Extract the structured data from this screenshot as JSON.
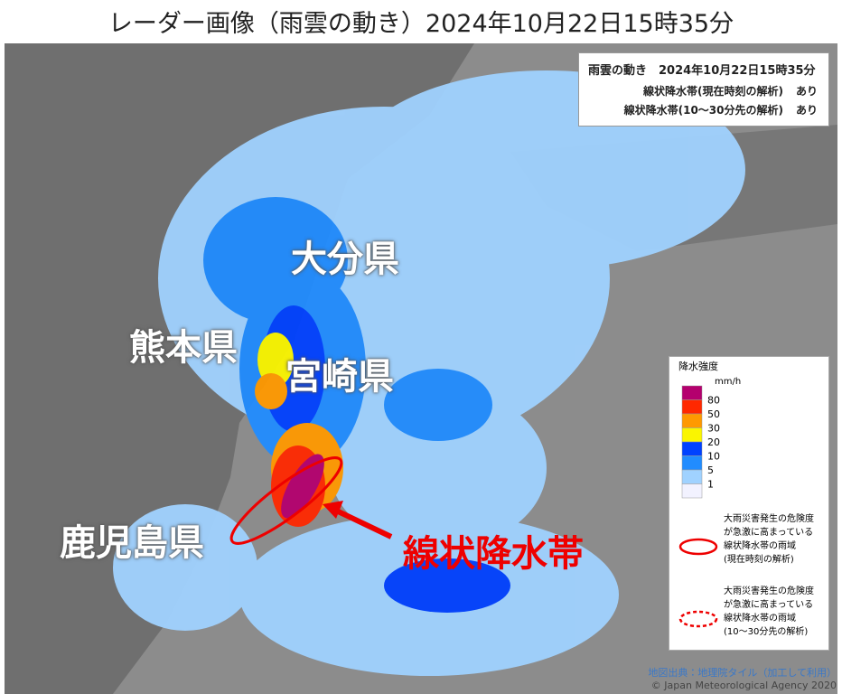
{
  "title": "レーダー画像（雨雲の動き）2024年10月22日15時35分",
  "info_box": {
    "title": "雨雲の動き　2024年10月22日15時35分",
    "rows": [
      [
        "線状降水帯(現在時刻の解析)",
        "あり"
      ],
      [
        "線状降水帯(10～30分先の解析)",
        "あり"
      ]
    ]
  },
  "prefectures": [
    "大分県",
    "熊本県",
    "宮崎県",
    "鹿児島県"
  ],
  "annotation": "線状降水帯",
  "legend": {
    "title": "降水強度",
    "unit": "mm/h",
    "colors": [
      "#b4006e",
      "#ff2800",
      "#ff9900",
      "#faf500",
      "#0041ff",
      "#218cff",
      "#a0d2ff",
      "#f2f2ff"
    ],
    "labels": [
      80,
      50,
      30,
      20,
      10,
      5,
      1
    ],
    "notes": [
      {
        "lines": [
          "大雨災害発生の危険度",
          "が急激に高まっている",
          "線状降水帯の雨域",
          "(現在時刻の解析)"
        ]
      },
      {
        "lines": [
          "大雨災害発生の危険度",
          "が急激に高まっている",
          "線状降水帯の雨域",
          "(10～30分先の解析)"
        ]
      }
    ]
  },
  "credits": [
    "地図出典：地理院タイル（加工して利用）",
    "© Japan Meteorological Agency 2020"
  ]
}
